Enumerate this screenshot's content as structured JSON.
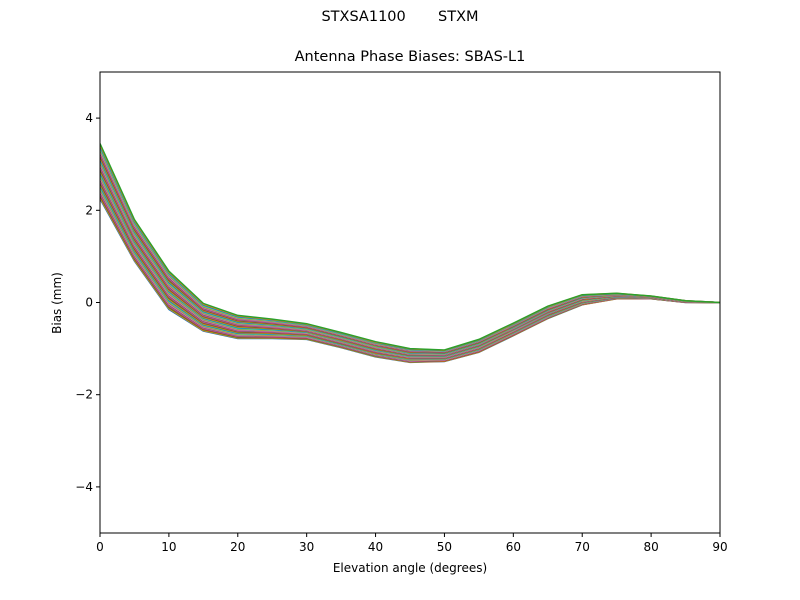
{
  "chart_data": {
    "type": "line",
    "suptitle": "STXSA1100       STXM",
    "title": "Antenna Phase Biases: SBAS-L1",
    "xlabel": "Elevation angle (degrees)",
    "ylabel": "Bias (mm)",
    "xlim": [
      0,
      90
    ],
    "ylim": [
      -5,
      5
    ],
    "xticks": [
      "0",
      "10",
      "20",
      "30",
      "40",
      "50",
      "60",
      "70",
      "80",
      "90"
    ],
    "yticks": [
      "−4",
      "−2",
      "0",
      "2",
      "4"
    ],
    "ytick_values": [
      -4,
      -2,
      0,
      2,
      4
    ],
    "grid": false,
    "x": [
      0,
      5,
      10,
      15,
      20,
      25,
      30,
      35,
      40,
      45,
      50,
      55,
      60,
      65,
      70,
      75,
      80,
      85,
      90
    ],
    "colors": [
      "#1f77b4",
      "#ff7f0e",
      "#2ca02c",
      "#d62728",
      "#9467bd",
      "#8c564b",
      "#e377c2",
      "#7f7f7f",
      "#bcbd22",
      "#17becf"
    ],
    "series": [
      {
        "values": [
          2.25,
          0.9,
          -0.15,
          -0.62,
          -0.78,
          -0.78,
          -0.8,
          -0.98,
          -1.18,
          -1.3,
          -1.28,
          -1.08,
          -0.72,
          -0.35,
          -0.05,
          0.08,
          0.08,
          0.0,
          0
        ]
      },
      {
        "values": [
          2.42,
          1.03,
          -0.03,
          -0.53,
          -0.71,
          -0.72,
          -0.75,
          -0.93,
          -1.13,
          -1.26,
          -1.24,
          -1.04,
          -0.68,
          -0.31,
          -0.02,
          0.1,
          0.09,
          0.01,
          0
        ]
      },
      {
        "values": [
          2.59,
          1.16,
          0.09,
          -0.45,
          -0.64,
          -0.66,
          -0.7,
          -0.89,
          -1.09,
          -1.21,
          -1.21,
          -1.0,
          -0.64,
          -0.27,
          0.01,
          0.11,
          0.1,
          0.01,
          0
        ]
      },
      {
        "values": [
          2.76,
          1.29,
          0.21,
          -0.36,
          -0.57,
          -0.6,
          -0.65,
          -0.84,
          -1.04,
          -1.17,
          -1.17,
          -0.96,
          -0.6,
          -0.23,
          0.04,
          0.13,
          0.11,
          0.02,
          0
        ]
      },
      {
        "values": [
          2.94,
          1.41,
          0.32,
          -0.28,
          -0.49,
          -0.54,
          -0.61,
          -0.79,
          -0.99,
          -1.13,
          -1.14,
          -0.92,
          -0.57,
          -0.2,
          0.08,
          0.15,
          0.11,
          0.02,
          0
        ]
      },
      {
        "values": [
          3.11,
          1.54,
          0.44,
          -0.19,
          -0.42,
          -0.48,
          -0.56,
          -0.74,
          -0.94,
          -1.09,
          -1.1,
          -0.88,
          -0.53,
          -0.16,
          0.11,
          0.17,
          0.12,
          0.03,
          0
        ]
      },
      {
        "values": [
          3.28,
          1.67,
          0.56,
          -0.11,
          -0.35,
          -0.42,
          -0.51,
          -0.7,
          -0.9,
          -1.04,
          -1.06,
          -0.84,
          -0.49,
          -0.12,
          0.14,
          0.18,
          0.13,
          0.03,
          0
        ]
      },
      {
        "values": [
          3.45,
          1.8,
          0.68,
          -0.02,
          -0.28,
          -0.36,
          -0.46,
          -0.65,
          -0.85,
          -1.0,
          -1.03,
          -0.8,
          -0.45,
          -0.08,
          0.17,
          0.2,
          0.14,
          0.04,
          0
        ]
      }
    ]
  }
}
